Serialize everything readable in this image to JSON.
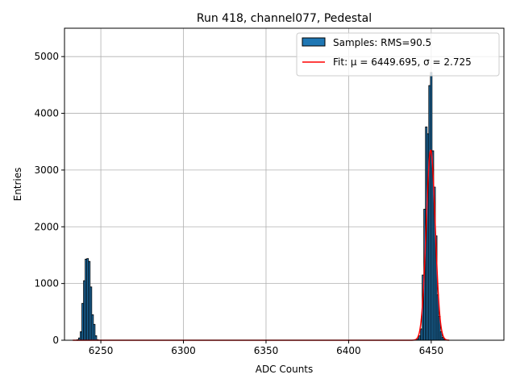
{
  "chart_data": {
    "type": "bar",
    "title": "Run 418, channel077, Pedestal",
    "xlabel": "ADC Counts",
    "ylabel": "Entries",
    "xlim": [
      6228,
      6494
    ],
    "ylim": [
      0,
      5500
    ],
    "xticks": [
      6250,
      6300,
      6350,
      6400,
      6450
    ],
    "yticks": [
      0,
      1000,
      2000,
      3000,
      4000,
      5000
    ],
    "grid": true,
    "legend_position": "top-right",
    "bin_width": 1,
    "colors": {
      "bars": "#1f77b4",
      "bar_edge": "#000000",
      "fit": "#ff0000",
      "grid": "#b0b0b0"
    },
    "series": [
      {
        "name": "Samples: RMS=90.5",
        "kind": "histogram",
        "x": [
          6236,
          6237,
          6238,
          6239,
          6240,
          6241,
          6242,
          6243,
          6244,
          6245,
          6246,
          6247,
          6248,
          6441,
          6442,
          6443,
          6444,
          6445,
          6446,
          6447,
          6448,
          6449,
          6450,
          6451,
          6452,
          6453,
          6454,
          6455,
          6456,
          6457,
          6458,
          6459,
          6460
        ],
        "values": [
          10,
          40,
          150,
          650,
          1050,
          1430,
          1440,
          1390,
          940,
          450,
          280,
          80,
          10,
          10,
          30,
          80,
          200,
          1150,
          2310,
          3760,
          3640,
          4490,
          4720,
          3340,
          2700,
          1840,
          800,
          420,
          150,
          50,
          15,
          5,
          2
        ]
      },
      {
        "name": "Fit: μ = 6449.695, σ = 2.725",
        "kind": "gaussian_fit",
        "mu": 6449.695,
        "sigma": 2.725,
        "amplitude": 3350,
        "x_range": [
          6233,
          6461
        ]
      }
    ]
  }
}
